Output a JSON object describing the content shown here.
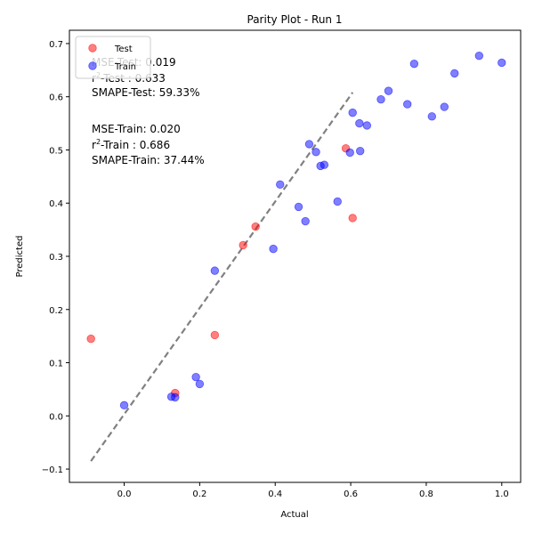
{
  "chart_data": {
    "type": "scatter",
    "title": "Parity Plot - Run 1",
    "xlabel": "Actual",
    "ylabel": "Predicted",
    "xlim": [
      -0.145,
      1.05
    ],
    "ylim": [
      -0.125,
      0.725
    ],
    "xticks": [
      0.0,
      0.2,
      0.4,
      0.6,
      0.8,
      1.0
    ],
    "xtick_labels": [
      "0.0",
      "0.2",
      "0.4",
      "0.6",
      "0.8",
      "1.0"
    ],
    "yticks": [
      -0.1,
      0.0,
      0.1,
      0.2,
      0.3,
      0.4,
      0.5,
      0.6,
      0.7
    ],
    "ytick_labels": [
      "−0.1",
      "0.0",
      "0.1",
      "0.2",
      "0.3",
      "0.4",
      "0.5",
      "0.6",
      "0.7"
    ],
    "grid": false,
    "legend_position": "top-left",
    "reference_line": {
      "style": "dashed",
      "color": "#808080",
      "x": [
        -0.088,
        0.605
      ],
      "y": [
        -0.085,
        0.608
      ]
    },
    "series": [
      {
        "name": "Test",
        "color": "#ff0000",
        "points": [
          [
            -0.088,
            0.145
          ],
          [
            0.135,
            0.043
          ],
          [
            0.24,
            0.152
          ],
          [
            0.315,
            0.321
          ],
          [
            0.348,
            0.356
          ],
          [
            0.587,
            0.503
          ],
          [
            0.605,
            0.372
          ]
        ]
      },
      {
        "name": "Train",
        "color": "#0000ff",
        "points": [
          [
            0.0,
            0.02
          ],
          [
            0.125,
            0.036
          ],
          [
            0.135,
            0.035
          ],
          [
            0.19,
            0.073
          ],
          [
            0.2,
            0.06
          ],
          [
            0.24,
            0.273
          ],
          [
            0.395,
            0.314
          ],
          [
            0.413,
            0.435
          ],
          [
            0.462,
            0.393
          ],
          [
            0.48,
            0.366
          ],
          [
            0.49,
            0.511
          ],
          [
            0.508,
            0.496
          ],
          [
            0.52,
            0.47
          ],
          [
            0.53,
            0.472
          ],
          [
            0.565,
            0.403
          ],
          [
            0.598,
            0.495
          ],
          [
            0.605,
            0.57
          ],
          [
            0.623,
            0.55
          ],
          [
            0.625,
            0.498
          ],
          [
            0.643,
            0.546
          ],
          [
            0.68,
            0.595
          ],
          [
            0.7,
            0.611
          ],
          [
            0.75,
            0.586
          ],
          [
            0.768,
            0.662
          ],
          [
            0.815,
            0.563
          ],
          [
            0.848,
            0.581
          ],
          [
            0.875,
            0.644
          ],
          [
            0.94,
            0.677
          ],
          [
            1.0,
            0.664
          ]
        ]
      }
    ],
    "annotations": [
      {
        "label": "MSE-Test",
        "value": ": 0.019"
      },
      {
        "label": "r",
        "sup": "2",
        "rest": "-Test : 0.633"
      },
      {
        "label": "SMAPE-Test",
        "value": ": 59.33%"
      },
      {
        "label": "MSE-Train",
        "value": ": 0.020"
      },
      {
        "label": "r",
        "sup": "2",
        "rest": "-Train : 0.686"
      },
      {
        "label": "SMAPE-Train",
        "value": ": 37.44%"
      }
    ]
  }
}
